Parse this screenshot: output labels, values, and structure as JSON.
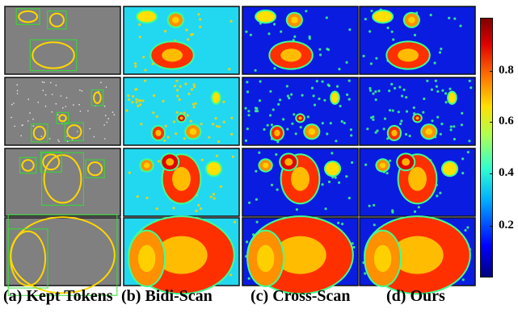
{
  "columns": [
    {
      "label": "(a) Kept Tokens",
      "variant": "tokens"
    },
    {
      "label": "(b) Bidi-Scan",
      "variant": "bidi"
    },
    {
      "label": "(c) Cross-Scan",
      "variant": "cross"
    },
    {
      "label": "(d) Ours",
      "variant": "ours"
    }
  ],
  "rows": [
    "scene-1",
    "scene-2",
    "scene-3",
    "scene-4"
  ],
  "colorbar": {
    "ticks": [
      "0.8",
      "0.6",
      "0.4",
      "0.2"
    ],
    "tick_values": [
      0.8,
      0.6,
      0.4,
      0.2
    ],
    "range": [
      0.0,
      1.0
    ],
    "colormap": "jet"
  },
  "colors": {
    "tokens_bg": "#808080",
    "bidi_bg": "#22d8f0",
    "cross_bg": "#0a1ce0",
    "ours_bg": "#0a1ce0"
  }
}
